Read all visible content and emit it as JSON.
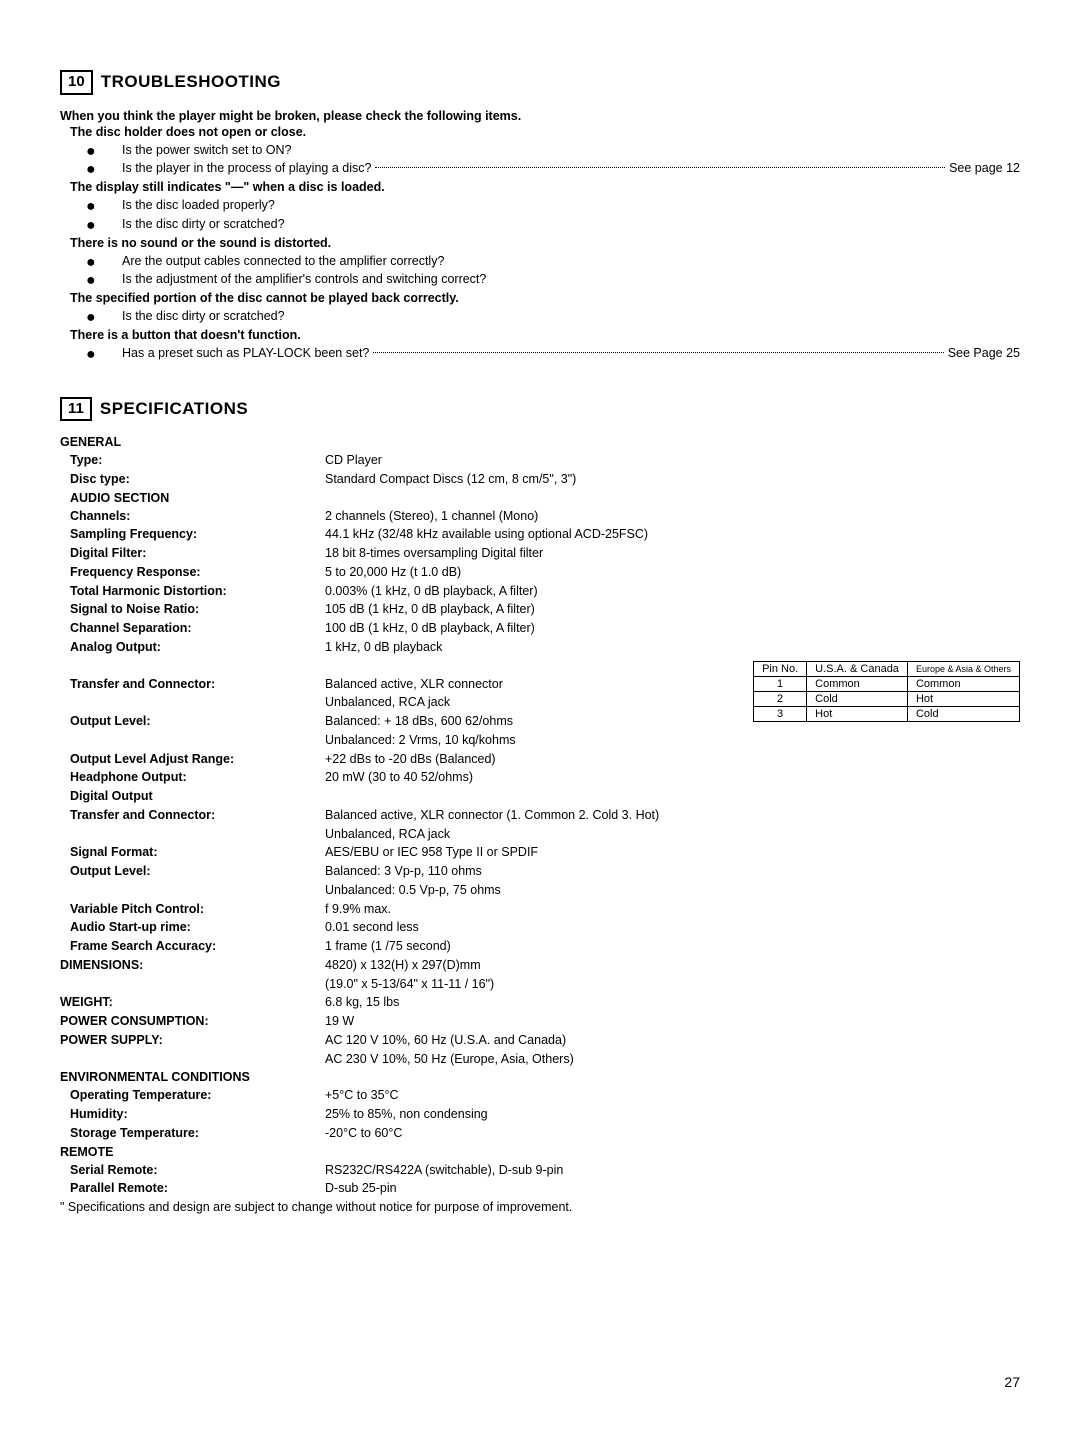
{
  "troubleshooting": {
    "number": "10",
    "title": "TROUBLESHOOTING",
    "intro": "When you think the player might be broken, please check the following items.",
    "groups": [
      {
        "symptom": "The disc holder does not open or close.",
        "items": [
          {
            "text": "Is the power switch set to ON?"
          },
          {
            "text": "Is the player in the process of playing a disc?",
            "see": "See page 12"
          }
        ]
      },
      {
        "symptom": "The display still indicates \"—\" when a disc is loaded.",
        "items": [
          {
            "text": "Is the disc loaded properly?"
          },
          {
            "text": "Is the disc dirty or scratched?"
          }
        ]
      },
      {
        "symptom": "There is no sound or the sound is distorted.",
        "items": [
          {
            "text": "Are the output cables connected to the amplifier correctly?"
          },
          {
            "text": "Is the adjustment of the amplifier's controls and switching correct?"
          }
        ]
      },
      {
        "symptom": "The specified portion of the disc cannot be played back correctly.",
        "items": [
          {
            "text": "Is the disc dirty or scratched?"
          }
        ]
      },
      {
        "symptom": "There is a button that doesn't function.",
        "items": [
          {
            "text": "Has a preset such as PLAY-LOCK been set?",
            "see": "See Page 25"
          }
        ]
      }
    ]
  },
  "specs": {
    "number": "11",
    "title": "SPECIFICATIONS",
    "general_header": "GENERAL",
    "general": [
      {
        "label": "Type:",
        "value": "CD Player"
      },
      {
        "label": "Disc type:",
        "value": "Standard Compact Discs (12 cm, 8 cm/5\", 3\")"
      }
    ],
    "audio_header": "AUDIO SECTION",
    "audio": [
      {
        "label": "Channels:",
        "value": "2 channels (Stereo), 1 channel (Mono)"
      },
      {
        "label": "Sampling Frequency:",
        "value": "44.1 kHz (32/48 kHz available using optional ACD-25FSC)"
      },
      {
        "label": "Digital Filter:",
        "value": "18 bit 8-times oversampling Digital filter"
      },
      {
        "label": "Frequency Response:",
        "value": "5 to 20,000 Hz (t 1.0 dB)"
      },
      {
        "label": "Total Harmonic Distortion:",
        "value": "0.003% (1 kHz, 0 dB playback, A filter)"
      },
      {
        "label": "Signal to Noise Ratio:",
        "value": "105 dB (1 kHz, 0 dB playback, A filter)"
      },
      {
        "label": "Channel Separation:",
        "value": "100 dB (1 kHz, 0 dB playback, A filter)"
      },
      {
        "label": "Analog Output:",
        "value": "1 kHz, 0 dB playback"
      }
    ],
    "audio2": [
      {
        "label": "Transfer and Connector:",
        "value": "Balanced active, XLR connector"
      },
      {
        "label": "",
        "value": "Unbalanced, RCA jack"
      },
      {
        "label": "Output Level:",
        "value": "Balanced: + 18 dBs, 600 62/ohms"
      },
      {
        "label": "",
        "value": "Unbalanced: 2 Vrms, 10 kq/kohms"
      },
      {
        "label": "Output Level Adjust Range:",
        "value": "+22 dBs to -20 dBs (Balanced)"
      },
      {
        "label": "Headphone Output:",
        "value": "20 mW (30 to 40 52/ohms)"
      },
      {
        "label": "Digital Output",
        "value": ""
      },
      {
        "label": "Transfer and Connector:",
        "value": "Balanced active, XLR connector (1. Common 2. Cold 3. Hot)"
      },
      {
        "label": "",
        "value": "Unbalanced, RCA jack"
      },
      {
        "label": "Signal Format:",
        "value": "AES/EBU or IEC 958 Type II or SPDIF"
      },
      {
        "label": "Output Level:",
        "value": "Balanced: 3 Vp-p, 110 ohms"
      },
      {
        "label": "",
        "value": "Unbalanced: 0.5 Vp-p, 75 ohms"
      },
      {
        "label": "Variable Pitch Control:",
        "value": "f 9.9% max."
      },
      {
        "label": "Audio Start-up rime:",
        "value": "0.01 second less"
      },
      {
        "label": "Frame Search Accuracy:",
        "value": "1 frame (1 /75 second)"
      }
    ],
    "dimensions": {
      "label": "DIMENSIONS:",
      "value": "4820) x 132(H) x 297(D)mm",
      "value2": "(19.0\" x 5-13/64\" x 11-11 / 16\")"
    },
    "weight": {
      "label": "WEIGHT:",
      "value": "6.8 kg, 15 lbs"
    },
    "power_consumption": {
      "label": "POWER CONSUMPTION:",
      "value": "19 W"
    },
    "power_supply": {
      "label": "POWER SUPPLY:",
      "value": "AC 120 V 10%, 60 Hz (U.S.A. and Canada)",
      "value2": "AC 230 V 10%, 50 Hz (Europe, Asia, Others)"
    },
    "env_header": "ENVIRONMENTAL CONDITIONS",
    "env": [
      {
        "label": "Operating Temperature:",
        "value": "+5°C to 35°C"
      },
      {
        "label": "Humidity:",
        "value": "25% to 85%, non condensing"
      },
      {
        "label": "Storage Temperature:",
        "value": "-20°C to 60°C"
      }
    ],
    "remote_header": "REMOTE",
    "remote": [
      {
        "label": "Serial Remote:",
        "value": "RS232C/RS422A (switchable), D-sub 9-pin"
      },
      {
        "label": "Parallel Remote:",
        "value": "D-sub 25-pin"
      }
    ],
    "footnote": "\" Specifications and design are subject to change without notice for purpose of improvement.",
    "pin_table": {
      "headers": [
        "Pin No.",
        "U.S.A. & Canada",
        "Europe & Asia & Others"
      ],
      "rows": [
        [
          "1",
          "Common",
          "Common"
        ],
        [
          "2",
          "Cold",
          "Hot"
        ],
        [
          "3",
          "Hot",
          "Cold"
        ]
      ]
    }
  },
  "page_number": "27"
}
